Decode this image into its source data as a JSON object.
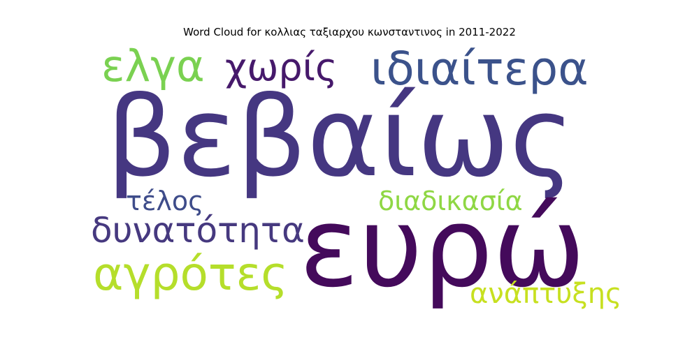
{
  "title": "Word Cloud for κολλιας ταξιαρχου κωνσταντινος in 2011-2022",
  "words": [
    {
      "text": "βεβαίως",
      "color": "#453781"
    },
    {
      "text": "ευρώ",
      "color": "#440a5b"
    },
    {
      "text": "ιδιαίτερα",
      "color": "#3b528b"
    },
    {
      "text": "ελγα",
      "color": "#7ad151"
    },
    {
      "text": "χωρίς",
      "color": "#46196b"
    },
    {
      "text": "αγρότες",
      "color": "#b5de2b"
    },
    {
      "text": "δυνατότητα",
      "color": "#46397f"
    },
    {
      "text": "τέλος",
      "color": "#3e4c8a"
    },
    {
      "text": "διαδικασία",
      "color": "#8fd744"
    },
    {
      "text": "ανάπτυξης",
      "color": "#c7e020"
    }
  ]
}
